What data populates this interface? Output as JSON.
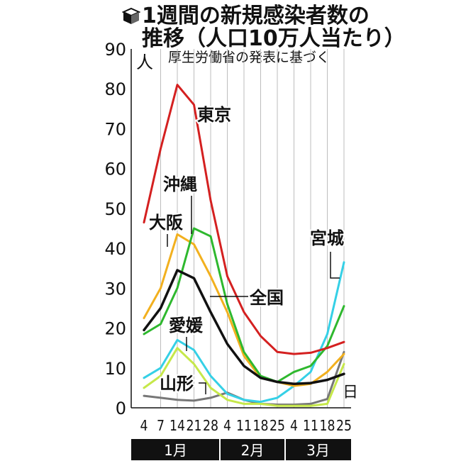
{
  "title": {
    "line1": "1週間の新規感染者数の",
    "line2": "推移（人口10万人当たり）",
    "icon": "cube-icon"
  },
  "subtitle": "厚生労働省の発表に基づく",
  "chart_data": {
    "type": "line",
    "x": [
      "1/4",
      "1/7",
      "1/14",
      "1/21",
      "1/28",
      "2/4",
      "2/11",
      "2/18",
      "2/25",
      "3/4",
      "3/11",
      "3/18",
      "3/25"
    ],
    "x_day_labels": [
      "4",
      "7",
      "14",
      "21",
      "28",
      "4",
      "11",
      "18",
      "25",
      "4",
      "11",
      "18",
      "25"
    ],
    "x_unit": "日",
    "months": [
      {
        "label": "1月",
        "start": 0,
        "end": 4
      },
      {
        "label": "2月",
        "start": 5,
        "end": 8
      },
      {
        "label": "3月",
        "start": 9,
        "end": 12
      }
    ],
    "y_unit": "人",
    "ylim": [
      0,
      90
    ],
    "yticks": [
      0,
      10,
      20,
      30,
      40,
      50,
      60,
      70,
      80,
      90
    ],
    "grid": "vertical",
    "series": [
      {
        "name": "東京",
        "color": "#d42020",
        "width": 3,
        "values": [
          46.5,
          65,
          81,
          76,
          52,
          33,
          24,
          18,
          14,
          13.5,
          13.8,
          15,
          16.5
        ]
      },
      {
        "name": "沖縄",
        "color": "#2eb82e",
        "width": 3,
        "values": [
          18.5,
          21,
          30,
          45,
          43,
          26,
          14,
          8,
          6.5,
          9,
          10.5,
          15.5,
          25.5
        ]
      },
      {
        "name": "大阪",
        "color": "#f2b01e",
        "width": 3,
        "values": [
          22.5,
          30,
          43.5,
          41,
          33,
          24,
          13,
          7.5,
          6.5,
          5.5,
          6,
          9,
          13.5
        ]
      },
      {
        "name": "全国",
        "color": "#111111",
        "width": 3.5,
        "values": [
          19.5,
          25,
          34.5,
          32.5,
          24,
          16,
          10.5,
          7.5,
          6.5,
          6,
          6.2,
          7,
          8.5
        ]
      },
      {
        "name": "宮城",
        "color": "#35d0e6",
        "width": 3,
        "values": [
          7.5,
          10,
          17,
          14.5,
          8,
          3.5,
          2,
          1.5,
          2.5,
          5.5,
          9,
          18.5,
          36.5
        ]
      },
      {
        "name": "愛媛",
        "color": "#c6e84a",
        "width": 3,
        "values": [
          5,
          8,
          15,
          11,
          5,
          2,
          1,
          1,
          0.5,
          0.5,
          0.5,
          1,
          11
        ]
      },
      {
        "name": "山形",
        "color": "#777777",
        "width": 3,
        "values": [
          3,
          2.5,
          2,
          1.8,
          2.5,
          3.8,
          2,
          1,
          0.8,
          0.8,
          1,
          2.2,
          14
        ]
      }
    ]
  }
}
